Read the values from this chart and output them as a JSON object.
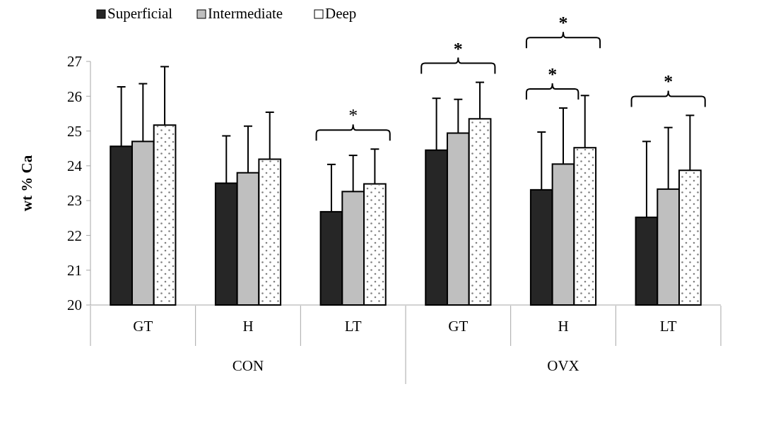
{
  "chart_data": {
    "type": "bar",
    "ylabel": "wt % Ca",
    "categories": [
      "GT",
      "H",
      "LT",
      "GT",
      "H",
      "LT"
    ],
    "series": [
      {
        "name": "Superficial",
        "color": "#262626",
        "values": [
          24.56,
          23.5,
          22.68,
          24.45,
          23.31,
          22.52
        ],
        "errors": [
          [
            24.56,
            26.27
          ],
          [
            23.5,
            24.86
          ],
          [
            22.68,
            24.04
          ],
          [
            24.45,
            25.94
          ],
          [
            23.31,
            24.97
          ],
          [
            22.52,
            24.7
          ]
        ]
      },
      {
        "name": "Intermediate",
        "color": "#bfbfbf",
        "values": [
          24.7,
          23.8,
          23.26,
          24.94,
          24.05,
          23.33
        ],
        "errors": [
          [
            24.7,
            26.36
          ],
          [
            23.8,
            25.14
          ],
          [
            23.26,
            24.3
          ],
          [
            24.94,
            25.91
          ],
          [
            24.05,
            25.66
          ],
          [
            23.33,
            25.1
          ]
        ]
      },
      {
        "name": "Deep",
        "color": "#ffffff",
        "values": [
          25.17,
          24.19,
          23.48,
          25.35,
          24.52,
          23.87
        ],
        "errors": [
          [
            25.17,
            26.85
          ],
          [
            24.19,
            25.54
          ],
          [
            23.48,
            24.48
          ],
          [
            25.35,
            26.4
          ],
          [
            24.52,
            26.02
          ],
          [
            23.87,
            25.45
          ]
        ]
      }
    ],
    "ylim": [
      20,
      27
    ],
    "yticks": [
      20,
      21,
      22,
      23,
      24,
      25,
      26,
      27
    ],
    "grid": false,
    "legend": "top left",
    "annotations": [
      "CON",
      "OVX",
      "*",
      "*",
      "*",
      "*",
      "*"
    ]
  }
}
